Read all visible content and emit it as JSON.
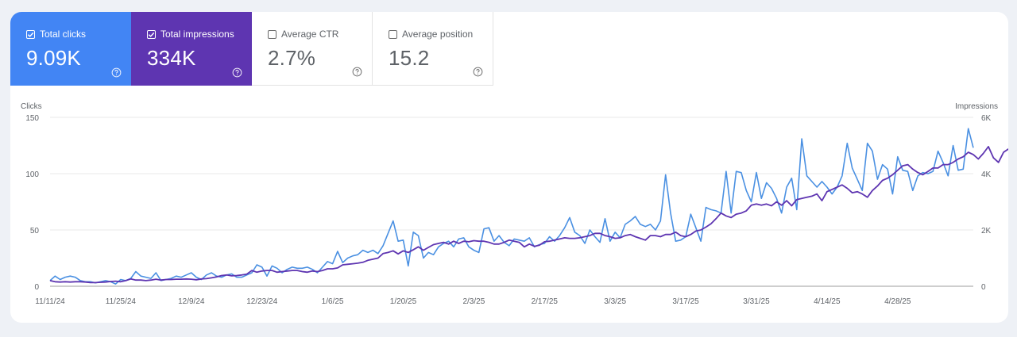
{
  "metrics": [
    {
      "label": "Total clicks",
      "value": "9.09K",
      "checked": true,
      "color": "#4285f4",
      "icon": "help-icon"
    },
    {
      "label": "Total impressions",
      "value": "334K",
      "checked": true,
      "color": "#5e35b1",
      "icon": "help-icon"
    },
    {
      "label": "Average CTR",
      "value": "2.7%",
      "checked": false,
      "icon": "help-icon"
    },
    {
      "label": "Average position",
      "value": "15.2",
      "checked": false,
      "icon": "help-icon"
    }
  ],
  "chart_data": {
    "type": "line",
    "left_axis": {
      "title": "Clicks",
      "min": 0,
      "max": 150,
      "ticks": [
        "0",
        "50",
        "100",
        "150"
      ]
    },
    "right_axis": {
      "title": "Impressions",
      "min": 0,
      "max": 6000,
      "ticks": [
        "0",
        "2K",
        "4K",
        "6K"
      ]
    },
    "x_tick_labels": [
      "11/11/24",
      "11/25/24",
      "12/9/24",
      "12/23/24",
      "1/6/25",
      "1/20/25",
      "2/3/25",
      "2/17/25",
      "3/3/25",
      "3/17/25",
      "3/31/25",
      "4/14/25",
      "4/28/25"
    ],
    "x_tick_index": [
      0,
      14,
      28,
      42,
      56,
      70,
      84,
      98,
      112,
      126,
      140,
      154,
      168
    ],
    "grid": true,
    "series": [
      {
        "name": "Total clicks",
        "axis": "left",
        "color": "#4a90e2",
        "values": [
          5,
          9,
          6,
          8,
          9,
          8,
          5,
          4,
          4,
          3,
          4,
          5,
          4,
          2,
          6,
          5,
          7,
          13,
          9,
          8,
          7,
          12,
          5,
          6,
          7,
          9,
          8,
          10,
          12,
          8,
          6,
          10,
          12,
          9,
          8,
          10,
          11,
          8,
          8,
          10,
          12,
          19,
          17,
          9,
          18,
          16,
          12,
          15,
          17,
          16,
          16,
          17,
          15,
          12,
          17,
          22,
          20,
          31,
          21,
          25,
          27,
          28,
          32,
          30,
          32,
          29,
          36,
          47,
          58,
          40,
          41,
          18,
          48,
          45,
          25,
          30,
          28,
          35,
          38,
          40,
          35,
          42,
          43,
          35,
          32,
          30,
          51,
          52,
          40,
          45,
          39,
          36,
          42,
          41,
          40,
          43,
          35,
          37,
          38,
          44,
          40,
          45,
          52,
          61,
          48,
          45,
          38,
          50,
          44,
          39,
          60,
          40,
          48,
          43,
          55,
          58,
          62,
          55,
          53,
          55,
          50,
          58,
          99,
          65,
          40,
          41,
          44,
          64,
          52,
          40,
          70,
          68,
          67,
          65,
          102,
          65,
          102,
          101,
          85,
          75,
          101,
          78,
          92,
          87,
          78,
          65,
          88,
          96,
          68,
          131,
          98,
          93,
          88,
          93,
          88,
          82,
          88,
          98,
          127,
          105,
          95,
          85,
          127,
          120,
          95,
          108,
          104,
          82,
          115,
          103,
          102,
          85,
          98,
          101,
          100,
          102,
          120,
          110,
          98,
          125,
          103,
          104,
          140,
          123
        ]
      },
      {
        "name": "Total impressions",
        "axis": "right",
        "color": "#5e35b1",
        "values": [
          200,
          160,
          150,
          160,
          150,
          160,
          160,
          150,
          130,
          130,
          140,
          150,
          170,
          180,
          160,
          200,
          260,
          220,
          220,
          200,
          220,
          250,
          220,
          240,
          240,
          250,
          250,
          260,
          250,
          230,
          260,
          270,
          300,
          330,
          380,
          400,
          370,
          380,
          400,
          430,
          560,
          500,
          540,
          560,
          560,
          500,
          520,
          540,
          560,
          560,
          520,
          500,
          540,
          520,
          560,
          620,
          620,
          650,
          760,
          780,
          800,
          820,
          850,
          920,
          960,
          1000,
          1160,
          1200,
          1260,
          1150,
          1260,
          1200,
          1300,
          1400,
          1280,
          1380,
          1480,
          1520,
          1560,
          1500,
          1600,
          1520,
          1600,
          1580,
          1620,
          1600,
          1600,
          1560,
          1500,
          1500,
          1560,
          1640,
          1600,
          1560,
          1400,
          1500,
          1420,
          1460,
          1580,
          1600,
          1640,
          1680,
          1720,
          1700,
          1700,
          1720,
          1760,
          1800,
          1880,
          1880,
          1800,
          1760,
          1700,
          1720,
          1800,
          1840,
          1760,
          1700,
          1640,
          1800,
          1800,
          1760,
          1840,
          1840,
          1920,
          1800,
          1760,
          1840,
          1960,
          2000,
          2100,
          2220,
          2400,
          2600,
          2500,
          2440,
          2560,
          2600,
          2680,
          2880,
          2920,
          2880,
          2920,
          2860,
          3000,
          2880,
          3040,
          2860,
          3080,
          3120,
          3160,
          3200,
          3280,
          3040,
          3360,
          3440,
          3520,
          3600,
          3480,
          3320,
          3360,
          3280,
          3160,
          3400,
          3560,
          3760,
          3840,
          3960,
          4120,
          4280,
          4320,
          4160,
          4040,
          3960,
          4080,
          4200,
          4200,
          4320,
          4320,
          4400,
          4520,
          4600,
          4760,
          4680,
          4520,
          4720,
          4960,
          4560,
          4400,
          4760,
          4880
        ]
      }
    ]
  }
}
